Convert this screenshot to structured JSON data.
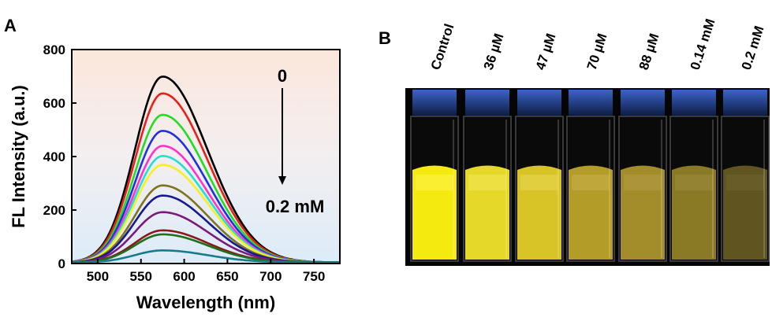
{
  "panel_a_label": "A",
  "panel_b_label": "B",
  "chart_data": {
    "type": "line",
    "xlabel": "Wavelength (nm)",
    "ylabel": "FL Intensity (a.u.)",
    "xlim": [
      470,
      780
    ],
    "ylim": [
      0,
      800
    ],
    "xticks": [
      500,
      550,
      600,
      650,
      700,
      750
    ],
    "yticks": [
      0,
      200,
      400,
      600,
      800
    ],
    "peak_wavelength": 575,
    "annotations": {
      "top": "0",
      "bottom": "0.2 mM"
    },
    "series": [
      {
        "color": "#000000",
        "peak": 695
      },
      {
        "color": "#e8201c",
        "peak": 632
      },
      {
        "color": "#22dd22",
        "peak": 552
      },
      {
        "color": "#2030e0",
        "peak": 492
      },
      {
        "color": "#ff33cc",
        "peak": 436
      },
      {
        "color": "#22e0d0",
        "peak": 398
      },
      {
        "color": "#f4f022",
        "peak": 365
      },
      {
        "color": "#7d7320",
        "peak": 288
      },
      {
        "color": "#181890",
        "peak": 250
      },
      {
        "color": "#7a1a7a",
        "peak": 188
      },
      {
        "color": "#8a1a1a",
        "peak": 120
      },
      {
        "color": "#1e6e1e",
        "peak": 105
      },
      {
        "color": "#1a7a8a",
        "peak": 45
      }
    ]
  },
  "vials": [
    {
      "label": "Control",
      "liquid": "#f4ea10",
      "glow": "#fff34a"
    },
    {
      "label": "36 µM",
      "liquid": "#e6d829",
      "glow": "#f3e85a"
    },
    {
      "label": "47 µM",
      "liquid": "#d9c427",
      "glow": "#e8d853"
    },
    {
      "label": "70 µM",
      "liquid": "#b49c28",
      "glow": "#c8b04a"
    },
    {
      "label": "88 µM",
      "liquid": "#a38c2a",
      "glow": "#b59d45"
    },
    {
      "label": "0.14 mM",
      "liquid": "#8a7a26",
      "glow": "#9c8b3c"
    },
    {
      "label": "0.2 mM",
      "liquid": "#605420",
      "glow": "#6f6330"
    }
  ]
}
